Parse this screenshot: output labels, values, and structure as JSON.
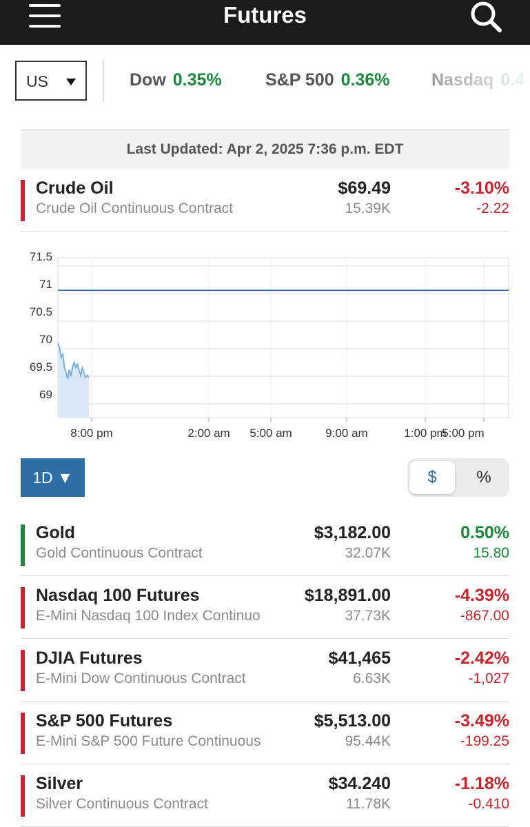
{
  "header": {
    "title": "Futures",
    "menu_icon": "hamburger-menu-icon",
    "search_icon": "search-icon"
  },
  "index_strip": {
    "region": "US",
    "indices": [
      {
        "name": "Dow",
        "change": "0.35%"
      },
      {
        "name": "S&P 500",
        "change": "0.36%"
      },
      {
        "name": "Nasdaq",
        "change": "0.4"
      }
    ]
  },
  "last_updated": "Last Updated: Apr 2, 2025 7:36 p.m. EDT",
  "featured": {
    "name": "Crude Oil",
    "description": "Crude Oil Continuous Contract",
    "price": "$69.49",
    "volume": "15.39K",
    "change_pct": "-3.10%",
    "change_net": "-2.22",
    "direction": "down"
  },
  "chart_data": {
    "type": "area",
    "title": "",
    "xlabel": "",
    "ylabel": "",
    "ylim": [
      68.75,
      71.65
    ],
    "y_ticks": [
      "71.5",
      "71",
      "70.5",
      "70",
      "69.5",
      "69"
    ],
    "x_ticks": [
      "8:00 pm",
      "2:00 am",
      "5:00 am",
      "9:00 am",
      "1:00 pm",
      "5:00 pm"
    ],
    "reference_line": {
      "value": 71.06,
      "color": "#2e6ea6"
    },
    "series": [
      {
        "color": "#7aaedc",
        "x": [
          "6:00 pm",
          "6:05 pm",
          "6:10 pm",
          "6:15 pm",
          "6:20 pm",
          "6:25 pm",
          "6:30 pm",
          "6:35 pm",
          "6:40 pm",
          "6:45 pm",
          "6:50 pm",
          "6:55 pm",
          "7:00 pm",
          "7:05 pm",
          "7:10 pm",
          "7:15 pm",
          "7:20 pm",
          "7:25 pm",
          "7:30 pm",
          "7:36 pm"
        ],
        "values": [
          70.1,
          70.02,
          69.85,
          69.9,
          69.65,
          69.58,
          69.45,
          69.62,
          69.5,
          69.68,
          69.75,
          69.66,
          69.72,
          69.6,
          69.52,
          69.65,
          69.56,
          69.48,
          69.52,
          69.49
        ]
      }
    ],
    "grid": true,
    "legend": "none"
  },
  "controls": {
    "range_label": "1D ▼",
    "toggle_options": [
      "$",
      "%"
    ],
    "toggle_selected": "$"
  },
  "rows": [
    {
      "name": "Gold",
      "description": "Gold Continuous Contract",
      "price": "$3,182.00",
      "volume": "32.07K",
      "change_pct": "0.50%",
      "change_net": "15.80",
      "direction": "up"
    },
    {
      "name": "Nasdaq 100 Futures",
      "description": "E-Mini Nasdaq 100 Index Continuo",
      "price": "$18,891.00",
      "volume": "37.73K",
      "change_pct": "-4.39%",
      "change_net": "-867.00",
      "direction": "down"
    },
    {
      "name": "DJIA Futures",
      "description": "E-Mini Dow Continuous Contract",
      "price": "$41,465",
      "volume": "6.63K",
      "change_pct": "-2.42%",
      "change_net": "-1,027",
      "direction": "down"
    },
    {
      "name": "S&P 500 Futures",
      "description": "E-Mini S&P 500 Future Continuous",
      "price": "$5,513.00",
      "volume": "95.44K",
      "change_pct": "-3.49%",
      "change_net": "-199.25",
      "direction": "down"
    },
    {
      "name": "Silver",
      "description": "Silver Continuous Contract",
      "price": "$34.240",
      "volume": "11.78K",
      "change_pct": "-1.18%",
      "change_net": "-0.410",
      "direction": "down"
    }
  ]
}
